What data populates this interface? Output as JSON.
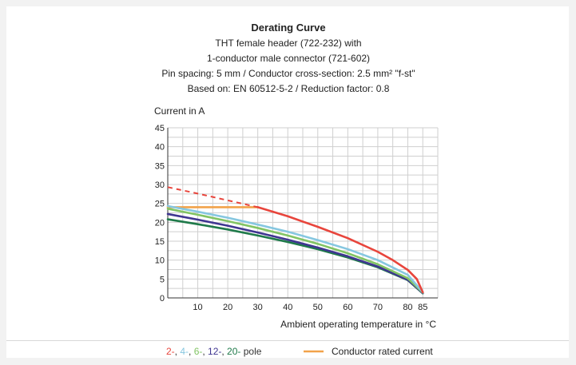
{
  "chart_data": {
    "type": "line",
    "title": "Derating Curve",
    "subtitle_lines": [
      "THT female header  (722-232) with",
      "1-conductor male connector (721-602)",
      "Pin spacing: 5 mm / Conductor cross-section: 2.5 mm² \"f-st\"",
      "Based on: EN 60512-5-2 / Reduction factor: 0.8"
    ],
    "ylabel": "Current in A",
    "xlabel": "Ambient operating temperature in °C",
    "xlim": [
      0,
      90
    ],
    "ylim": [
      0,
      45
    ],
    "x_ticks": [
      "10",
      "20",
      "30",
      "40",
      "50",
      "60",
      "70",
      "80",
      "85"
    ],
    "y_ticks": [
      "0",
      "5",
      "10",
      "15",
      "20",
      "25",
      "30",
      "35",
      "40",
      "45"
    ],
    "grid": true,
    "series": [
      {
        "name": "2-",
        "color": "#e8453c",
        "x": [
          30,
          40,
          50,
          60,
          70,
          75,
          80,
          83,
          85
        ],
        "y": [
          24,
          21.6,
          18.8,
          15.8,
          12.2,
          10.0,
          7.4,
          5.0,
          1.5
        ],
        "dashed_x": [
          0,
          10,
          20,
          30
        ],
        "dashed_y": [
          29.3,
          27.6,
          25.8,
          24
        ]
      },
      {
        "name": "4-",
        "color": "#86c7e0",
        "x": [
          0,
          10,
          20,
          30,
          40,
          50,
          60,
          70,
          80,
          85
        ],
        "y": [
          24.3,
          22.8,
          21.2,
          19.4,
          17.5,
          15.3,
          12.9,
          10.0,
          6.1,
          1.5
        ]
      },
      {
        "name": "6-",
        "color": "#82c464",
        "x": [
          0,
          10,
          20,
          30,
          40,
          50,
          60,
          70,
          80,
          85
        ],
        "y": [
          23.6,
          22.0,
          20.3,
          18.5,
          16.5,
          14.3,
          11.8,
          8.9,
          5.2,
          1.4
        ]
      },
      {
        "name": "12-",
        "color": "#3f3591",
        "x": [
          0,
          10,
          20,
          30,
          40,
          50,
          60,
          70,
          80,
          85
        ],
        "y": [
          22.2,
          20.7,
          19.1,
          17.3,
          15.4,
          13.3,
          11.0,
          8.3,
          4.8,
          1.3
        ]
      },
      {
        "name": "20-",
        "color": "#1f7a4a",
        "x": [
          0,
          10,
          20,
          30,
          40,
          50,
          60,
          70,
          80,
          85
        ],
        "y": [
          20.8,
          19.5,
          18.1,
          16.5,
          14.8,
          12.9,
          10.7,
          8.1,
          4.7,
          1.2
        ]
      },
      {
        "name": "Conductor rated current",
        "color": "#f2a34a",
        "x": [
          0,
          30
        ],
        "y": [
          24,
          24
        ]
      }
    ],
    "legend": {
      "pole_items": [
        {
          "text": "2-",
          "color": "#e8453c"
        },
        {
          "text": ", ",
          "color": "#333333"
        },
        {
          "text": "4-",
          "color": "#86c7e0"
        },
        {
          "text": ", ",
          "color": "#333333"
        },
        {
          "text": "6-",
          "color": "#82c464"
        },
        {
          "text": ", ",
          "color": "#333333"
        },
        {
          "text": "12-",
          "color": "#3f3591"
        },
        {
          "text": ", ",
          "color": "#333333"
        },
        {
          "text": "20-",
          "color": "#1f7a4a"
        },
        {
          "text": " pole",
          "color": "#333333"
        }
      ],
      "rated_label": "Conductor rated current",
      "rated_color": "#f2a34a"
    }
  }
}
